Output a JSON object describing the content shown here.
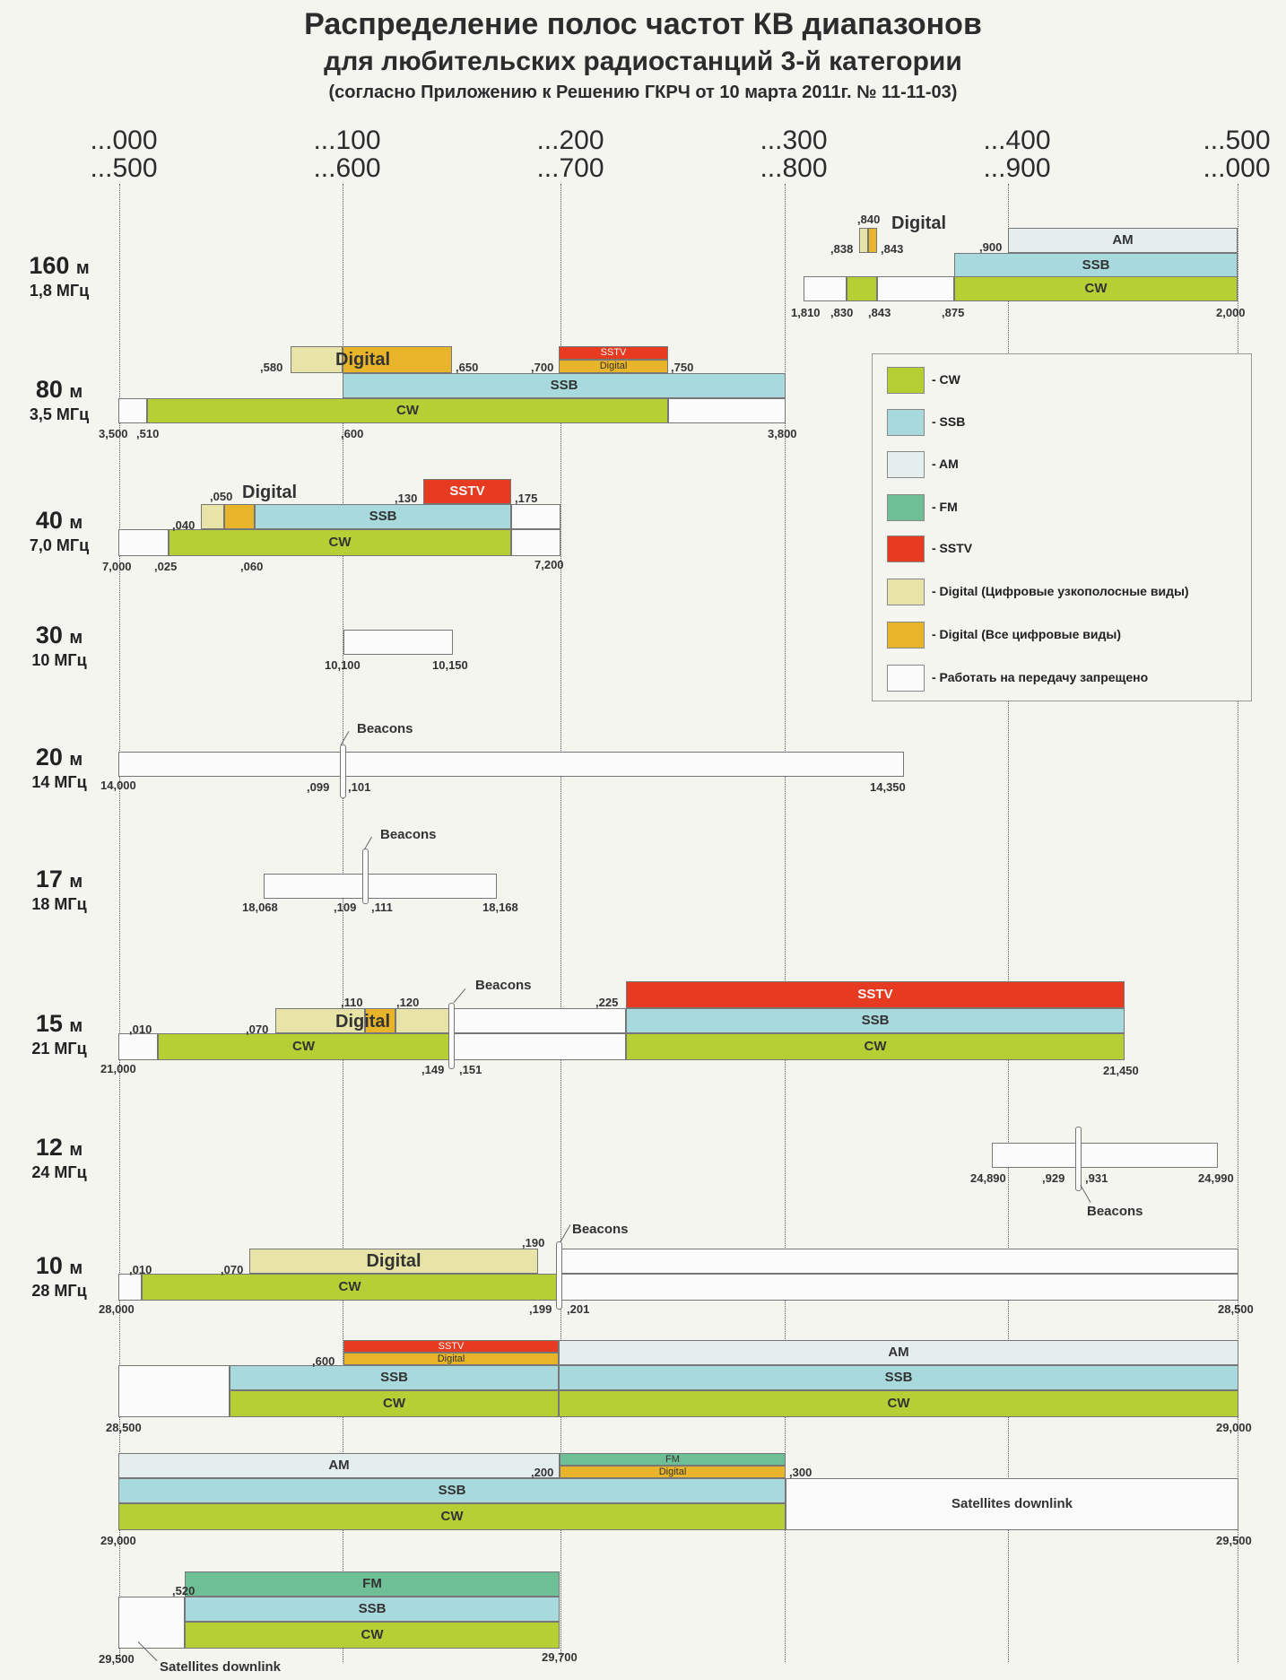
{
  "header": {
    "title": "Распределение полос частот КВ диапазонов",
    "subtitle": "для любительских радиостанций 3-й категории",
    "source": "(согласно Приложению к Решению ГКРЧ от 10 марта 2011г. № 11-11-03)"
  },
  "scale": [
    {
      "top": "...000",
      "bottom": "...500"
    },
    {
      "top": "...100",
      "bottom": "...600"
    },
    {
      "top": "...200",
      "bottom": "...700"
    },
    {
      "top": "...300",
      "bottom": "...800"
    },
    {
      "top": "...400",
      "bottom": "...900"
    },
    {
      "top": "...500",
      "bottom": "...000"
    }
  ],
  "bands": {
    "b160": {
      "m": "160",
      "unit": "м",
      "freq": "1,8 МГц"
    },
    "b80": {
      "m": "80",
      "unit": "м",
      "freq": "3,5 МГц"
    },
    "b40": {
      "m": "40",
      "unit": "м",
      "freq": "7,0 МГц"
    },
    "b30": {
      "m": "30",
      "unit": "м",
      "freq": "10 МГц"
    },
    "b20": {
      "m": "20",
      "unit": "м",
      "freq": "14 МГц"
    },
    "b17": {
      "m": "17",
      "unit": "м",
      "freq": "18 МГц"
    },
    "b15": {
      "m": "15",
      "unit": "м",
      "freq": "21 МГц"
    },
    "b12": {
      "m": "12",
      "unit": "м",
      "freq": "24 МГц"
    },
    "b10": {
      "m": "10",
      "unit": "м",
      "freq": "28 МГц"
    }
  },
  "modes": {
    "cw": "CW",
    "ssb": "SSB",
    "am": "AM",
    "fm": "FM",
    "sstv": "SSTV",
    "digital": "Digital",
    "beacons": "Beacons",
    "sat": "Satellites downlink"
  },
  "labels": {
    "l160": [
      ",840",
      ",838",
      ",843",
      ",900",
      "1,810",
      ",830",
      ",843",
      ",875",
      "2,000"
    ],
    "l80": [
      ",580",
      ",650",
      ",700",
      ",750",
      "3,500",
      ",510",
      ",600",
      "3,800"
    ],
    "l40": [
      ",050",
      ",040",
      ",130",
      ",175",
      "7,000",
      ",025",
      ",060",
      "7,200"
    ],
    "l30": [
      "10,100",
      "10,150"
    ],
    "l20": [
      "14,000",
      ",099",
      ",101",
      "14,350"
    ],
    "l17": [
      "18,068",
      ",109",
      ",111",
      "18,168"
    ],
    "l15": [
      ",110",
      ",120",
      ",010",
      ",070",
      ",225",
      "21,000",
      ",149",
      ",151",
      "21,450"
    ],
    "l12": [
      "24,890",
      ",929",
      ",931",
      "24,990"
    ],
    "l10": [
      ",190",
      ",010",
      ",070",
      "28,000",
      ",199",
      ",201",
      "28,500"
    ],
    "l10b": [
      ",600",
      "28,500",
      "29,000"
    ],
    "l10c": [
      ",200",
      ",300",
      "29,000",
      "29,500"
    ],
    "l10d": [
      ",520",
      "29,500",
      "29,700"
    ]
  },
  "legend": [
    {
      "key": "cw",
      "text": "- CW",
      "color": "#b5cf35"
    },
    {
      "key": "ssb",
      "text": "- SSB",
      "color": "#a8d9dc"
    },
    {
      "key": "am",
      "text": "- AM",
      "color": "#e5eeee"
    },
    {
      "key": "fm",
      "text": "- FM",
      "color": "#6fbf96"
    },
    {
      "key": "sstv",
      "text": "- SSTV",
      "color": "#e63b21"
    },
    {
      "key": "digital",
      "text": "- Digital (Цифровые узкополосные виды)",
      "color": "#e8e3a6"
    },
    {
      "key": "digall",
      "text": "- Digital (Все цифровые виды)",
      "color": "#e8b42a"
    },
    {
      "key": "none",
      "text": "- Работать на передачу запрещено",
      "color": "#fbfbfb"
    }
  ]
}
